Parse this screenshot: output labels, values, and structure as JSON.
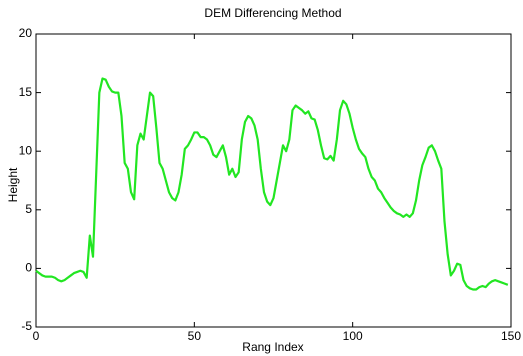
{
  "chart_data": {
    "type": "line",
    "title": "DEM Differencing Method",
    "x_label": "Rang Index",
    "y_label": "Height",
    "x": [
      0,
      1,
      2,
      3,
      4,
      5,
      6,
      7,
      8,
      9,
      10,
      11,
      12,
      13,
      14,
      15,
      16,
      17,
      18,
      19,
      20,
      21,
      22,
      23,
      24,
      25,
      26,
      27,
      28,
      29,
      30,
      31,
      32,
      33,
      34,
      35,
      36,
      37,
      38,
      39,
      40,
      41,
      42,
      43,
      44,
      45,
      46,
      47,
      48,
      49,
      50,
      51,
      52,
      53,
      54,
      55,
      56,
      57,
      58,
      59,
      60,
      61,
      62,
      63,
      64,
      65,
      66,
      67,
      68,
      69,
      70,
      71,
      72,
      73,
      74,
      75,
      76,
      77,
      78,
      79,
      80,
      81,
      82,
      83,
      84,
      85,
      86,
      87,
      88,
      89,
      90,
      91,
      92,
      93,
      94,
      95,
      96,
      97,
      98,
      99,
      100,
      101,
      102,
      103,
      104,
      105,
      106,
      107,
      108,
      109,
      110,
      111,
      112,
      113,
      114,
      115,
      116,
      117,
      118,
      119,
      120,
      121,
      122,
      123,
      124,
      125,
      126,
      127,
      128,
      129,
      130,
      131,
      132,
      133,
      134,
      135,
      136,
      137,
      138,
      139,
      140,
      141,
      142,
      143,
      144,
      145,
      146,
      147,
      148,
      149
    ],
    "values": [
      -0.2,
      -0.4,
      -0.6,
      -0.7,
      -0.7,
      -0.7,
      -0.8,
      -1.0,
      -1.1,
      -1.0,
      -0.8,
      -0.6,
      -0.4,
      -0.3,
      -0.2,
      -0.3,
      -0.8,
      2.8,
      1.0,
      8,
      15,
      16.2,
      16.1,
      15.5,
      15.1,
      15.0,
      15.0,
      13,
      9,
      8.5,
      6.5,
      5.9,
      10.5,
      11.5,
      11,
      13,
      15,
      14.7,
      12,
      9,
      8.5,
      7.5,
      6.5,
      6,
      5.8,
      6.5,
      8,
      10.2,
      10.5,
      11,
      11.6,
      11.6,
      11.2,
      11.2,
      11,
      10.5,
      9.7,
      9.5,
      10,
      10.5,
      9.5,
      8,
      8.5,
      7.8,
      8.2,
      11,
      12.5,
      13,
      12.8,
      12.2,
      11,
      8.5,
      6.5,
      5.7,
      5.4,
      6,
      7.5,
      9,
      10.5,
      10,
      11,
      13.5,
      13.9,
      13.7,
      13.5,
      13.2,
      13.4,
      12.8,
      12.7,
      11.8,
      10.5,
      9.4,
      9.3,
      9.6,
      9.2,
      11,
      13.5,
      14.3,
      14.0,
      13.2,
      12,
      11,
      10.2,
      9.8,
      9.5,
      8.5,
      7.8,
      7.5,
      6.8,
      6.5,
      6.0,
      5.6,
      5.2,
      4.9,
      4.7,
      4.6,
      4.4,
      4.6,
      4.4,
      4.7,
      5.8,
      7.5,
      8.8,
      9.5,
      10.3,
      10.5,
      10.0,
      9.2,
      8.5,
      4,
      1.2,
      -0.6,
      -0.2,
      0.4,
      0.3,
      -1.0,
      -1.5,
      -1.7,
      -1.8,
      -1.8,
      -1.6,
      -1.5,
      -1.6,
      -1.3,
      -1.1,
      -1.0,
      -1.1,
      -1.2,
      -1.3,
      -1.4
    ],
    "color": "#22e622",
    "xlim": [
      0,
      150
    ],
    "xticks": [
      0,
      50,
      100,
      150
    ],
    "ylim": [
      -5,
      20
    ],
    "yticks": [
      -5,
      0,
      5,
      10,
      15,
      20
    ]
  }
}
